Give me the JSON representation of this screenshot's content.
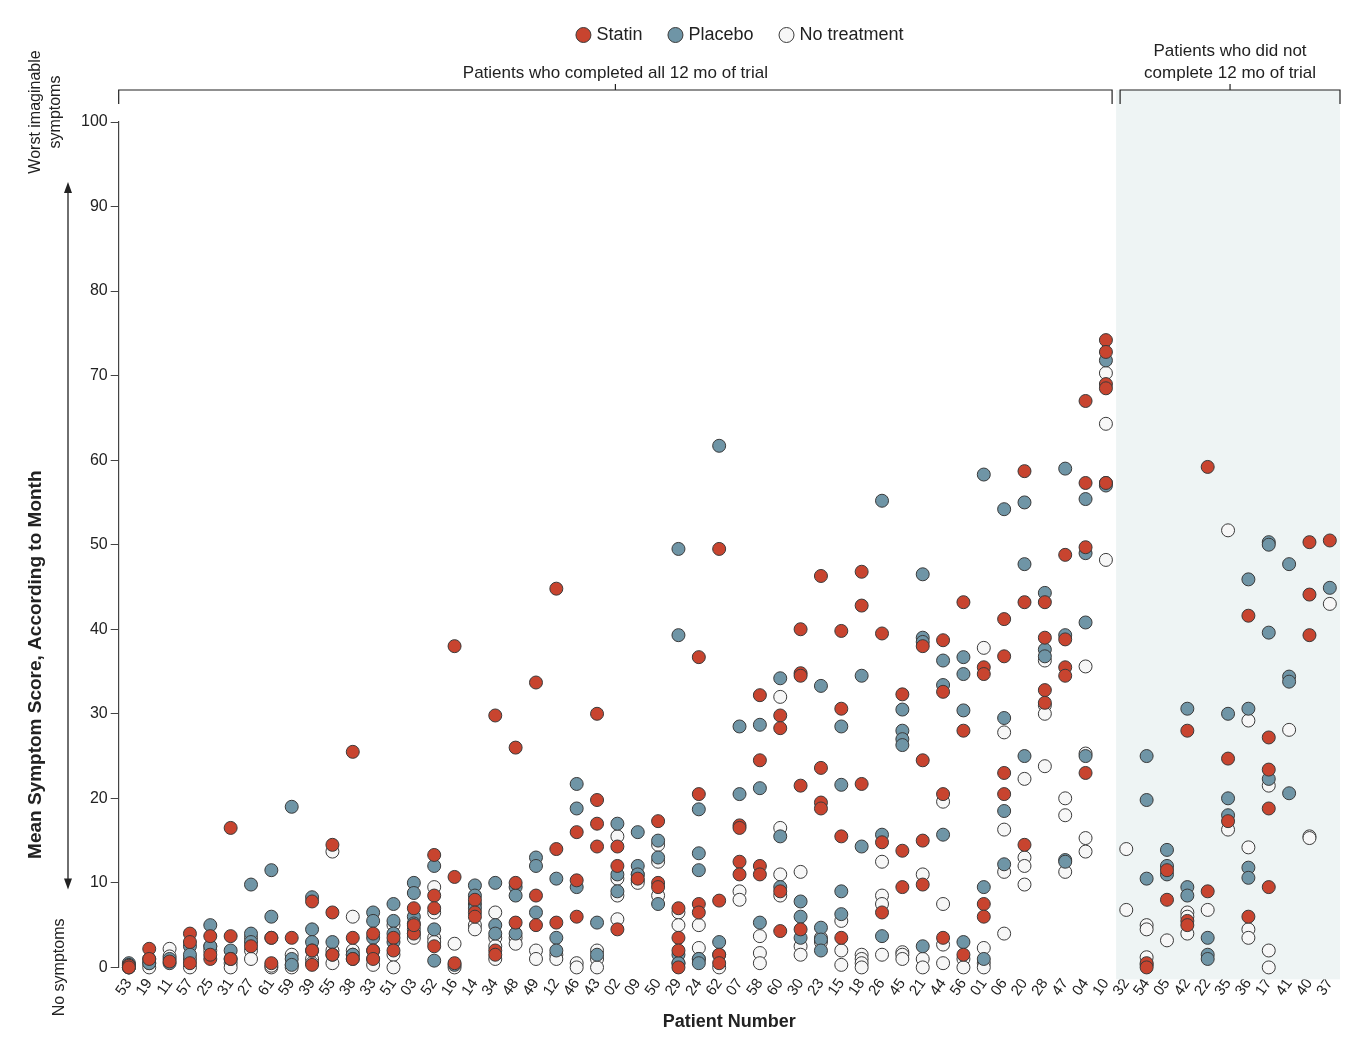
{
  "chart_data": {
    "type": "scatter",
    "x_label": "Patient Number",
    "y_label": "Mean Symptom Score, According to Month",
    "y_axis_notes": {
      "high": "Worst imaginable symptoms",
      "low": "No symptoms"
    },
    "groups": [
      {
        "label": "Patients who completed all 12 mo of trial",
        "first": "53",
        "last": "10"
      },
      {
        "label": "Patients who did not complete 12 mo of trial",
        "first": "32",
        "last": "37"
      }
    ],
    "categories": [
      "53",
      "19",
      "11",
      "57",
      "25",
      "31",
      "27",
      "61",
      "59",
      "39",
      "55",
      "38",
      "33",
      "51",
      "03",
      "52",
      "16",
      "14",
      "34",
      "48",
      "49",
      "12",
      "46",
      "43",
      "02",
      "09",
      "50",
      "29",
      "24",
      "62",
      "07",
      "58",
      "60",
      "30",
      "23",
      "15",
      "18",
      "26",
      "45",
      "21",
      "44",
      "56",
      "01",
      "06",
      "20",
      "28",
      "47",
      "04",
      "10",
      "32",
      "54",
      "05",
      "42",
      "22",
      "35",
      "36",
      "17",
      "41",
      "40",
      "37"
    ],
    "ylim": [
      0,
      100
    ],
    "yticks": [
      0,
      10,
      20,
      30,
      40,
      50,
      60,
      70,
      80,
      90,
      100
    ],
    "grid": false,
    "legend": "top",
    "marker": "circle",
    "series": [
      {
        "name": "Statin",
        "color": "#c8442f",
        "values": [
          [
            0.2,
            0
          ],
          [
            2.2,
            1
          ],
          [
            0.7
          ],
          [
            4,
            3,
            0.5
          ],
          [
            3.7,
            1,
            1.5
          ],
          [
            16.5,
            3.7,
            1
          ],
          [
            2.5
          ],
          [
            3.5,
            0.5
          ],
          [
            3.5
          ],
          [
            7.8,
            2,
            0.3
          ],
          [
            14.5,
            6.5,
            1.5
          ],
          [
            25.5,
            3.5,
            1
          ],
          [
            4,
            2,
            1
          ],
          [
            3.5,
            2
          ],
          [
            7,
            4,
            5
          ],
          [
            13.3,
            8.5,
            7,
            2.5
          ],
          [
            38,
            10.7,
            0.5
          ],
          [
            8,
            6.5,
            6
          ],
          [
            29.8,
            2,
            1.5
          ],
          [
            26,
            10,
            5.3
          ],
          [
            33.7,
            8.5,
            5
          ],
          [
            44.8,
            14,
            5.3
          ],
          [
            16,
            10.3,
            6
          ],
          [
            30,
            19.8,
            17,
            14.3
          ],
          [
            14.3,
            12,
            4.5
          ],
          [
            10.5
          ],
          [
            17.3,
            10,
            9.5
          ],
          [
            7,
            3.5,
            2,
            0
          ],
          [
            36.7,
            20.5,
            7.5,
            6.5
          ],
          [
            49.5,
            7.9,
            1.5,
            0.5
          ],
          [
            16.8,
            16.5,
            12.5,
            11
          ],
          [
            32.2,
            24.5,
            12,
            11
          ],
          [
            29.8,
            28.3,
            9,
            4.3
          ],
          [
            40,
            34.8,
            34.5,
            21.5,
            4.5
          ],
          [
            46.3,
            23.6,
            19.5,
            18.8
          ],
          [
            39.8,
            30.6,
            15.5,
            3.5
          ],
          [
            46.8,
            42.8,
            21.7
          ],
          [
            39.5,
            14.8,
            6.5
          ],
          [
            32.3,
            13.8,
            9.5
          ],
          [
            38,
            24.5,
            15,
            9.8
          ],
          [
            38.7,
            32.6,
            20.5,
            3.5
          ],
          [
            43.2,
            28,
            1.5
          ],
          [
            35.5,
            34.7,
            7.5,
            6
          ],
          [
            41.2,
            36.8,
            23,
            20.5
          ],
          [
            58.7,
            43.2,
            14.5
          ],
          [
            43.2,
            39,
            32.8,
            31.3
          ],
          [
            48.8,
            38.8,
            35.5,
            34.5
          ],
          [
            67,
            57.3,
            49.7,
            23
          ],
          [
            74.2,
            72.8,
            69,
            68.5,
            57.3
          ],
          [],
          [
            0.5,
            0
          ],
          [
            11.5,
            8
          ],
          [
            28,
            5.5,
            5
          ],
          [
            59.2,
            9
          ],
          [
            24.7,
            17.3
          ],
          [
            41.6,
            6
          ],
          [
            27.2,
            23.4,
            18.8,
            9.5
          ],
          [],
          [
            50.3,
            44.1,
            39.3
          ],
          [
            50.5
          ]
        ]
      },
      {
        "name": "Placebo",
        "color": "#6f95a6",
        "values": [
          [
            0.5,
            0,
            0.3
          ],
          [
            1,
            0.5
          ],
          [
            1,
            0.5
          ],
          [
            2.5,
            1.5
          ],
          [
            5,
            2.5
          ],
          [
            2,
            1
          ],
          [
            9.8,
            4,
            3
          ],
          [
            11.5,
            6,
            3.5
          ],
          [
            19,
            1,
            0.3
          ],
          [
            8.3,
            4.5,
            3,
            2
          ],
          [
            3,
            1.5
          ],
          [
            1.5,
            1
          ],
          [
            6.5,
            5.5,
            3.5,
            2
          ],
          [
            7.5,
            5.5,
            4,
            3
          ],
          [
            10,
            8.8,
            6,
            5.2
          ],
          [
            12,
            4.5,
            0.8
          ],
          [
            0.3
          ],
          [
            9.7,
            8.5,
            7.5,
            7
          ],
          [
            10,
            5,
            4
          ],
          [
            9.5,
            8.5,
            4
          ],
          [
            13,
            12,
            6.5
          ],
          [
            10.5,
            3.5,
            2
          ],
          [
            21.7,
            18.8,
            9.5
          ],
          [
            5.3,
            1.5
          ],
          [
            17,
            11,
            9
          ],
          [
            16,
            12,
            11
          ],
          [
            15,
            13,
            7.5
          ],
          [
            49.5,
            39.3,
            1.5,
            0.5
          ],
          [
            18.7,
            13.5,
            11.5,
            1,
            0.5
          ],
          [
            61.7,
            3
          ],
          [
            28.5,
            20.5
          ],
          [
            28.7,
            21.2,
            5.3
          ],
          [
            34.2,
            15.5,
            9.5
          ],
          [
            7.8,
            6,
            3.5
          ],
          [
            33.3,
            4.7,
            3.3,
            2
          ],
          [
            28.5,
            21.6,
            9,
            6.3
          ],
          [
            34.5,
            14.3
          ],
          [
            55.2,
            15.7,
            3.7
          ],
          [
            30.5,
            28,
            27,
            26.3
          ],
          [
            46.5,
            39,
            38.5,
            2.5
          ],
          [
            36.3,
            33.4,
            15.7
          ],
          [
            36.7,
            34.7,
            30.4,
            3
          ],
          [
            58.3,
            9.5,
            1
          ],
          [
            54.2,
            29.5,
            18.5,
            12.2
          ],
          [
            55,
            47.7,
            25
          ],
          [
            44.3,
            37.6,
            36.8
          ],
          [
            59,
            39.3,
            12.7,
            12.5
          ],
          [
            55.4,
            49,
            40.8,
            25
          ],
          [
            71.8,
            57.3,
            57
          ],
          [],
          [
            25,
            19.8,
            10.5
          ],
          [
            13.9,
            12,
            11
          ],
          [
            30.6,
            9.5,
            8.5
          ],
          [
            3.5,
            1.5,
            1
          ],
          [
            30,
            20,
            18
          ],
          [
            45.9,
            30.6,
            11.8,
            10.6
          ],
          [
            50.3,
            50,
            39.6,
            22.3
          ],
          [
            47.7,
            34.4,
            33.8,
            20.6
          ],
          [],
          [
            44.9
          ]
        ]
      },
      {
        "name": "No treatment",
        "color": "#f7f7f7",
        "values": [
          [
            0
          ],
          [
            0,
            0.5
          ],
          [
            2.2,
            1.3
          ],
          [
            1,
            0
          ],
          [
            2.5,
            2
          ],
          [
            0.5,
            0
          ],
          [
            3.5,
            2,
            1
          ],
          [
            0,
            0.2
          ],
          [
            1.5,
            0.3,
            0
          ],
          [
            1,
            0.5
          ],
          [
            13.7,
            2,
            0.5
          ],
          [
            6,
            2,
            1.5
          ],
          [
            1,
            0.3
          ],
          [
            5,
            1.5,
            0
          ],
          [
            4.5,
            4,
            3.5
          ],
          [
            9.5,
            6.5,
            3.5,
            3
          ],
          [
            2.8,
            0
          ],
          [
            5,
            4.5
          ],
          [
            6.5,
            3.5,
            2.5,
            1
          ],
          [
            3.5,
            2.8
          ],
          [
            2,
            1
          ],
          [
            1.5,
            1
          ],
          [
            0.5,
            0
          ],
          [
            2,
            1,
            0
          ],
          [
            15.5,
            10.5,
            8.5,
            5.7
          ],
          [
            11,
            10.3,
            10
          ],
          [
            14.5,
            12.5,
            8.5
          ],
          [
            6.5,
            5,
            0.5
          ],
          [
            5,
            2.3,
            1
          ],
          [
            1.5,
            0
          ],
          [
            9,
            8
          ],
          [
            3.7,
            1.7,
            0.5
          ],
          [
            32,
            16.5,
            11,
            8.5
          ],
          [
            11.3,
            2.5,
            1.5
          ],
          [
            3.5,
            3
          ],
          [
            5.5,
            2,
            0.3
          ],
          [
            1.5,
            1,
            0.5,
            0
          ],
          [
            12.5,
            8.5,
            7.5,
            1.5
          ],
          [
            1.8,
            1.5,
            1
          ],
          [
            11,
            1,
            0
          ],
          [
            19.6,
            7.5,
            2.7,
            0.5
          ],
          [
            1,
            0
          ],
          [
            37.8,
            2.3,
            0.5,
            0
          ],
          [
            27.8,
            16.3,
            11.3,
            4
          ],
          [
            22.3,
            13,
            12,
            9.8
          ],
          [
            36.3,
            31,
            30,
            23.8
          ],
          [
            20,
            18,
            11.3
          ],
          [
            35.6,
            25.3,
            15.3,
            13.7
          ],
          [
            70.3,
            64.3,
            48.2
          ],
          [
            14,
            6.8
          ],
          [
            5,
            4.5,
            1.2,
            0.3
          ],
          [
            3.2
          ],
          [
            6.5,
            6,
            4
          ],
          [
            6.8
          ],
          [
            51.7,
            16.3
          ],
          [
            29.2,
            14.2,
            4.5,
            3.5
          ],
          [
            21.5,
            2,
            0
          ],
          [
            28.1
          ],
          [
            15.5,
            15.3
          ],
          [
            43
          ]
        ]
      }
    ]
  }
}
